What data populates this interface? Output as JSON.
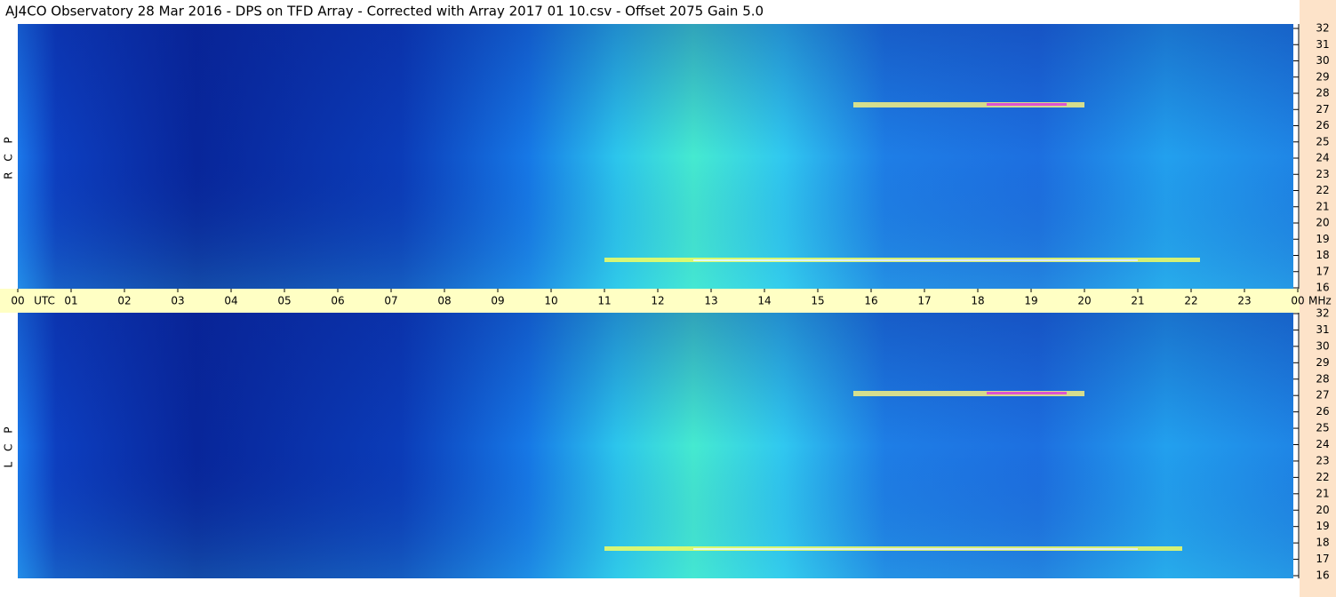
{
  "chart_data": {
    "type": "spectrogram",
    "title": "AJ4CO Observatory  28 Mar 2016  -  DPS on TFD Array  -  Corrected with Array 2017 01 10.csv  -  Offset 2075  Gain 5.0",
    "xlabel": "UTC",
    "ylabel": "MHz",
    "panels": [
      {
        "label": "R C P"
      },
      {
        "label": "L C P"
      }
    ],
    "xlim": [
      0,
      24
    ],
    "xticks": [
      {
        "value": 0,
        "label": "00"
      },
      {
        "value": 1,
        "label": "01"
      },
      {
        "value": 2,
        "label": "02"
      },
      {
        "value": 3,
        "label": "03"
      },
      {
        "value": 4,
        "label": "04"
      },
      {
        "value": 5,
        "label": "05"
      },
      {
        "value": 6,
        "label": "06"
      },
      {
        "value": 7,
        "label": "07"
      },
      {
        "value": 8,
        "label": "08"
      },
      {
        "value": 9,
        "label": "09"
      },
      10,
      11,
      12,
      13,
      14,
      15,
      16,
      17,
      18,
      19,
      20,
      21,
      22,
      23,
      {
        "value": 24,
        "label": "00"
      }
    ],
    "ylim": [
      16,
      32
    ],
    "yticks": [
      16,
      17,
      18,
      19,
      20,
      21,
      22,
      23,
      24,
      25,
      26,
      27,
      28,
      29,
      30,
      31,
      32
    ]
  }
}
